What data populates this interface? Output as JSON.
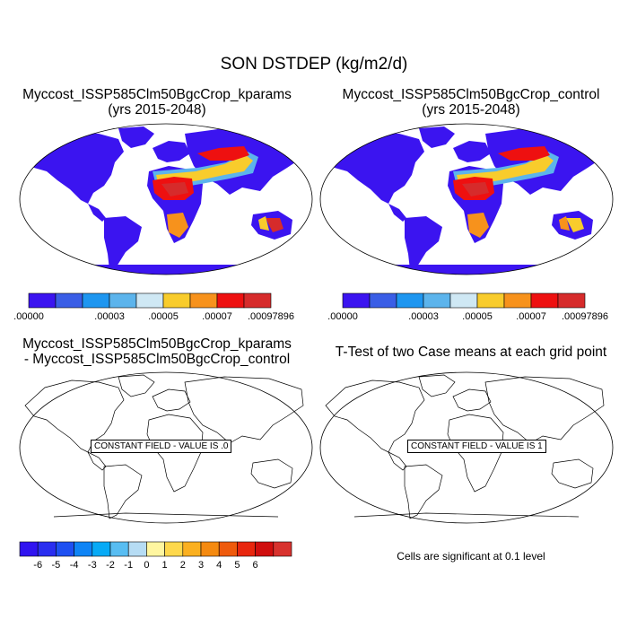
{
  "main_title": "SON DSTDEP (kg/m2/d)",
  "panels": [
    {
      "title_line1": "Myccost_ISSP585Clm50BgcCrop_kparams",
      "title_line2": "(yrs 2015-2048)",
      "colorbar": {
        "labels": [
          ".00000",
          ".00003",
          ".00005",
          ".00007",
          ".00097896"
        ],
        "colors": [
          "#3b14f0",
          "#3a5ee6",
          "#1e96f0",
          "#5cb4ec",
          "#cfe8f4",
          "#f8cc2c",
          "#f7921c",
          "#ee1010",
          "#d62b2b"
        ]
      }
    },
    {
      "title_line1": "Myccost_ISSP585Clm50BgcCrop_control",
      "title_line2": "(yrs 2015-2048)",
      "colorbar": {
        "labels": [
          ".00000",
          ".00003",
          ".00005",
          ".00007",
          ".00097896"
        ],
        "colors": [
          "#3b14f0",
          "#3a5ee6",
          "#1e96f0",
          "#5cb4ec",
          "#cfe8f4",
          "#f8cc2c",
          "#f7921c",
          "#ee1010",
          "#d62b2b"
        ]
      }
    },
    {
      "title_line1": "Myccost_ISSP585Clm50BgcCrop_kparams",
      "title_line2": "- Myccost_ISSP585Clm50BgcCrop_control",
      "field_label": "CONSTANT FIELD - VALUE IS .0",
      "colorbar": {
        "labels": [
          "-6",
          "-5",
          "-4",
          "-3",
          "-2",
          "-1",
          "0",
          "1",
          "2",
          "3",
          "4",
          "5",
          "6"
        ],
        "colors": [
          "#3014f0",
          "#2a2ef0",
          "#1e50f2",
          "#0f84f5",
          "#07aaf6",
          "#58bdf2",
          "#b6dcf4",
          "#fff6a0",
          "#fed84c",
          "#fbb020",
          "#f58a10",
          "#ef5a0c",
          "#e8260e",
          "#d00e0e",
          "#d8322e"
        ]
      }
    },
    {
      "title_line1": "T-Test of two Case means at each grid point",
      "field_label": "CONSTANT FIELD - VALUE IS 1",
      "note": "Cells are significant at 0.1 level"
    }
  ],
  "map_palette": {
    "ocean": "#ffffff",
    "land_low": "#3b14f0",
    "level2": "#3a5ee6",
    "level3": "#1e96f0",
    "level4": "#5cb4ec",
    "level5": "#cfe8f4",
    "level6": "#f8cc2c",
    "level7": "#f7921c",
    "level8": "#ee1010",
    "level9": "#d62b2b"
  }
}
